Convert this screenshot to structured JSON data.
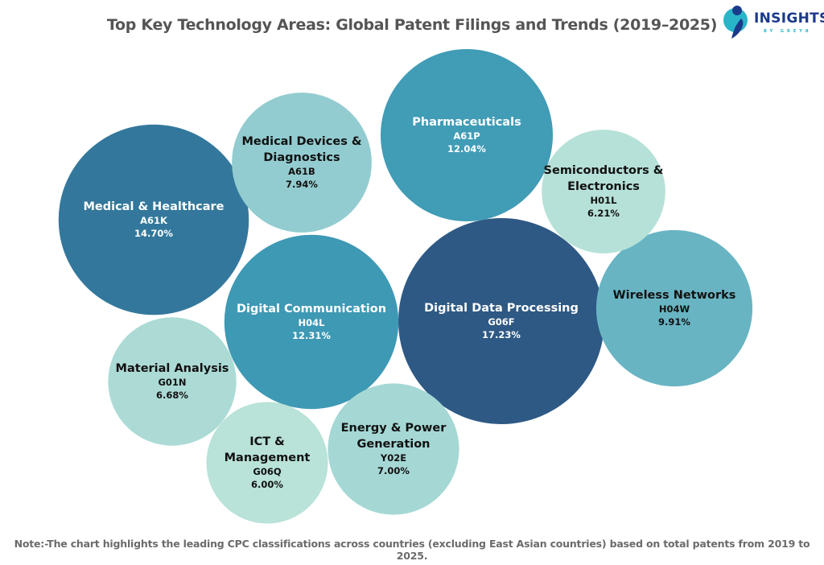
{
  "chart_data": {
    "type": "bubble",
    "title": "Top Key Technology Areas: Global Patent Filings and Trends (2019–2025)",
    "note": "Note:-The chart highlights the leading CPC classifications across countries (excluding East Asian countries) based on total patents from 2019 to 2025.",
    "value_unit": "% of total patents",
    "bubbles": [
      {
        "name": "Digital Data Processing",
        "code": "G06F",
        "value": 17.23,
        "label": "17.23%",
        "color": "#2e5984",
        "text_color": "#ffffff"
      },
      {
        "name": "Medical & Healthcare",
        "code": "A61K",
        "value": 14.7,
        "label": "14.70%",
        "color": "#33789c",
        "text_color": "#ffffff"
      },
      {
        "name": "Digital Communication",
        "code": "H04L",
        "value": 12.31,
        "label": "12.31%",
        "color": "#3e99b4",
        "text_color": "#ffffff"
      },
      {
        "name": "Pharmaceuticals",
        "code": "A61P",
        "value": 12.04,
        "label": "12.04%",
        "color": "#419cb6",
        "text_color": "#ffffff"
      },
      {
        "name": "Wireless Networks",
        "code": "H04W",
        "value": 9.91,
        "label": "9.91%",
        "color": "#68b4c3",
        "text_color": "#111111"
      },
      {
        "name": "Medical Devices & Diagnostics",
        "name_lines": [
          "Medical Devices &",
          "Diagnostics"
        ],
        "code": "A61B",
        "value": 7.94,
        "label": "7.94%",
        "color": "#93ccd0",
        "text_color": "#111111"
      },
      {
        "name": "Energy & Power Generation",
        "name_lines": [
          "Energy & Power",
          "Generation"
        ],
        "code": "Y02E",
        "value": 7.0,
        "label": "7.00%",
        "color": "#a5d8d5",
        "text_color": "#111111"
      },
      {
        "name": "Material Analysis",
        "code": "G01N",
        "value": 6.68,
        "label": "6.68%",
        "color": "#acdbd6",
        "text_color": "#111111"
      },
      {
        "name": "Semiconductors & Electronics",
        "name_lines": [
          "Semiconductors &",
          "Electronics"
        ],
        "code": "H01L",
        "value": 6.21,
        "label": "6.21%",
        "color": "#b6e1d8",
        "text_color": "#111111"
      },
      {
        "name": "ICT & Management",
        "name_lines": [
          "ICT &",
          "Management"
        ],
        "code": "G06Q",
        "value": 6.0,
        "label": "6.00%",
        "color": "#b9e2d9",
        "text_color": "#111111"
      }
    ]
  },
  "logo": {
    "text": "INSIGHTS",
    "subtext": "BY GREYB",
    "colors": {
      "primary": "#1a3a8a",
      "accent": "#29b5c8"
    }
  }
}
